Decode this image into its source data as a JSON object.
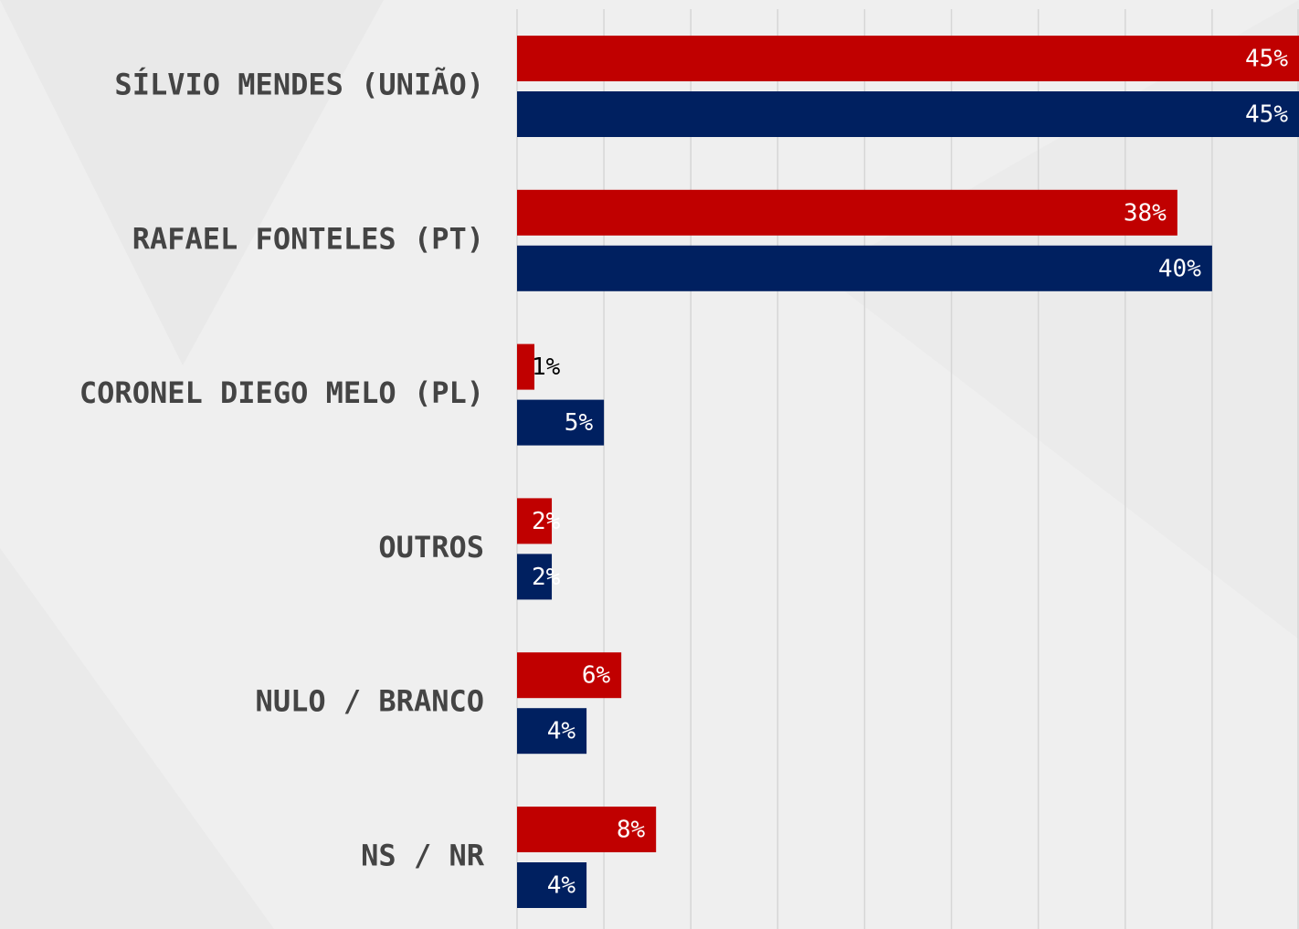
{
  "chart_data": {
    "type": "barh",
    "categories": [
      "SÍLVIO MENDES (UNIÃO)",
      "RAFAEL FONTELES (PT)",
      "CORONEL DIEGO MELO (PL)",
      "OUTROS",
      "NULO / BRANCO",
      "NS / NR"
    ],
    "series": [
      {
        "color": "#c00000",
        "values": [
          45,
          38,
          1,
          2,
          6,
          8
        ],
        "value_labels": [
          "45%",
          "38%",
          "1%",
          "2%",
          "6%",
          "8%"
        ]
      },
      {
        "color": "#002060",
        "values": [
          45,
          40,
          5,
          2,
          4,
          4
        ],
        "value_labels": [
          "45%",
          "40%",
          "5%",
          "2%",
          "4%",
          "4%"
        ]
      }
    ],
    "xlim": [
      0,
      45
    ],
    "xticks": [
      0,
      5,
      10,
      15,
      20,
      25,
      30,
      35,
      40,
      45
    ],
    "grid": true
  }
}
